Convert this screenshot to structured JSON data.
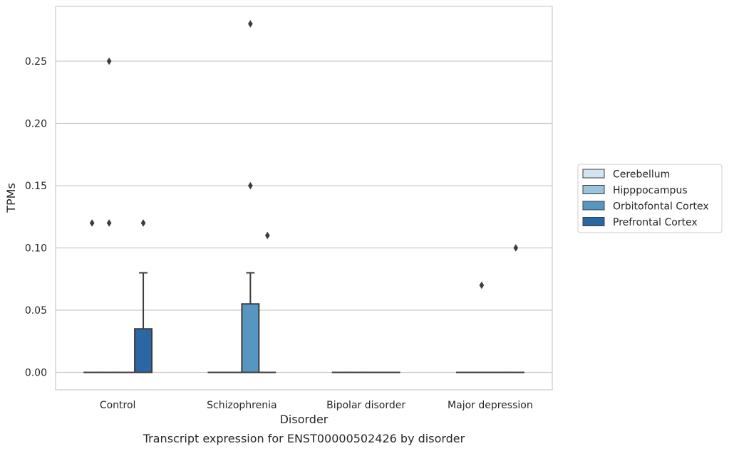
{
  "chart_data": {
    "type": "box",
    "caption": "Transcript expression for ENST00000502426 by disorder",
    "xlabel": "Disorder",
    "ylabel": "TPMs",
    "categories": [
      "Control",
      "Schizophrenia",
      "Bipolar disorder",
      "Major depression"
    ],
    "ylim": [
      -0.014,
      0.294
    ],
    "yticks": [
      0.0,
      0.05,
      0.1,
      0.15,
      0.2,
      0.25
    ],
    "ytick_labels": [
      "0.00",
      "0.05",
      "0.10",
      "0.15",
      "0.20",
      "0.25"
    ],
    "grid": true,
    "legend": {
      "placement": "right",
      "entries": [
        "Cerebellum",
        "Hipppocampus",
        "Orbitofontal Cortex",
        "Prefrontal Cortex"
      ]
    },
    "series": [
      {
        "name": "Cerebellum",
        "color": "#d3e4f3",
        "boxes": [
          {
            "category": "Control",
            "q1": 0,
            "median": 0,
            "q3": 0,
            "whisker_low": 0,
            "whisker_high": 0,
            "outliers": [
              0.12
            ]
          },
          {
            "category": "Schizophrenia",
            "q1": 0,
            "median": 0,
            "q3": 0,
            "whisker_low": 0,
            "whisker_high": 0,
            "outliers": []
          },
          {
            "category": "Bipolar disorder",
            "q1": 0,
            "median": 0,
            "q3": 0,
            "whisker_low": 0,
            "whisker_high": 0,
            "outliers": []
          },
          {
            "category": "Major depression",
            "q1": 0,
            "median": 0,
            "q3": 0,
            "whisker_low": 0,
            "whisker_high": 0,
            "outliers": []
          }
        ]
      },
      {
        "name": "Hipppocampus",
        "color": "#9ac3de",
        "boxes": [
          {
            "category": "Control",
            "q1": 0,
            "median": 0,
            "q3": 0,
            "whisker_low": 0,
            "whisker_high": 0,
            "outliers": [
              0.25,
              0.12
            ]
          },
          {
            "category": "Schizophrenia",
            "q1": 0,
            "median": 0,
            "q3": 0,
            "whisker_low": 0,
            "whisker_high": 0,
            "outliers": []
          },
          {
            "category": "Bipolar disorder",
            "q1": 0,
            "median": 0,
            "q3": 0,
            "whisker_low": 0,
            "whisker_high": 0,
            "outliers": []
          },
          {
            "category": "Major depression",
            "q1": 0,
            "median": 0,
            "q3": 0,
            "whisker_low": 0,
            "whisker_high": 0,
            "outliers": [
              0.07
            ]
          }
        ]
      },
      {
        "name": "Orbitofontal Cortex",
        "color": "#5896c2",
        "boxes": [
          {
            "category": "Control",
            "q1": 0,
            "median": 0,
            "q3": 0,
            "whisker_low": 0,
            "whisker_high": 0,
            "outliers": []
          },
          {
            "category": "Schizophrenia",
            "q1": 0,
            "median": 0,
            "q3": 0.055,
            "whisker_low": 0,
            "whisker_high": 0.08,
            "outliers": [
              0.28,
              0.15
            ]
          },
          {
            "category": "Bipolar disorder",
            "q1": 0,
            "median": 0,
            "q3": 0,
            "whisker_low": 0,
            "whisker_high": 0,
            "outliers": []
          },
          {
            "category": "Major depression",
            "q1": 0,
            "median": 0,
            "q3": 0,
            "whisker_low": 0,
            "whisker_high": 0,
            "outliers": []
          }
        ]
      },
      {
        "name": "Prefrontal Cortex",
        "color": "#2a68a5",
        "boxes": [
          {
            "category": "Control",
            "q1": 0,
            "median": 0,
            "q3": 0.035,
            "whisker_low": 0,
            "whisker_high": 0.08,
            "outliers": [
              0.12
            ]
          },
          {
            "category": "Schizophrenia",
            "q1": 0,
            "median": 0,
            "q3": 0,
            "whisker_low": 0,
            "whisker_high": 0,
            "outliers": [
              0.11
            ]
          },
          {
            "category": "Bipolar disorder",
            "q1": 0,
            "median": 0,
            "q3": 0,
            "whisker_low": 0,
            "whisker_high": 0,
            "outliers": []
          },
          {
            "category": "Major depression",
            "q1": 0,
            "median": 0,
            "q3": 0,
            "whisker_low": 0,
            "whisker_high": 0,
            "outliers": [
              0.1
            ]
          }
        ]
      }
    ]
  }
}
